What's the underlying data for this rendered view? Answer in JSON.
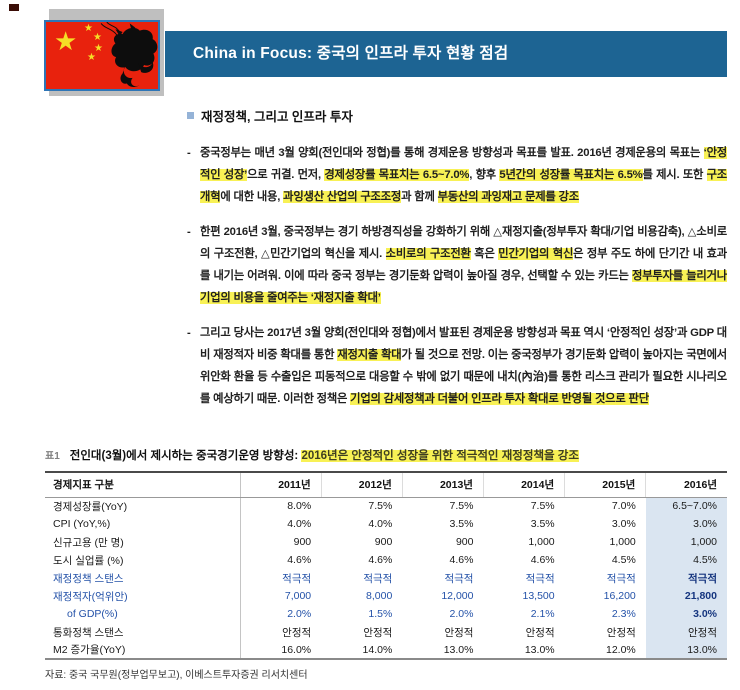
{
  "header": {
    "banner_title": "China in Focus: 중국의 인프라 투자 현황 점검",
    "banner_color": "#1d6493",
    "flag_icon": "china-flag-with-dragon"
  },
  "section": {
    "heading": "재정정책, 그리고 인프라 투자",
    "dash_marker": "-",
    "highlight_color": "#f8f155",
    "paragraphs": [
      {
        "segments": [
          {
            "text": "중국정부는 매년 3월 양회(전인대와 정협)를 통해 경제운용 방향성과 목표를 발표. 2016년 경제운용의 목표는 ",
            "hl": false
          },
          {
            "text": "‘안정적인 성장’",
            "hl": true
          },
          {
            "text": "으로 귀결. 먼저, ",
            "hl": false
          },
          {
            "text": "경제성장률 목표치는 6.5~7.0%",
            "hl": true
          },
          {
            "text": ", 향후 ",
            "hl": false
          },
          {
            "text": "5년간의 성장률 목표치는 6.5%",
            "hl": true
          },
          {
            "text": "를 제시. 또한 ",
            "hl": false
          },
          {
            "text": "구조개혁",
            "hl": true
          },
          {
            "text": "에 대한 내용, ",
            "hl": false
          },
          {
            "text": "과잉생산 산업의 구조조정",
            "hl": true
          },
          {
            "text": "과 함께 ",
            "hl": false
          },
          {
            "text": "부동산의 과잉재고 문제를 강조",
            "hl": true
          }
        ]
      },
      {
        "segments": [
          {
            "text": "한편 2016년 3월, 중국정부는 경기 하방경직성을 강화하기 위해 △재정지출(정부투자 확대/기업 비용감축), △소비로의 구조전환, △민간기업의 혁신을 제시. ",
            "hl": false
          },
          {
            "text": "소비로의 구조전환",
            "hl": true
          },
          {
            "text": " 혹은 ",
            "hl": false
          },
          {
            "text": "민간기업의 혁신",
            "hl": true
          },
          {
            "text": "은 정부 주도 하에 단기간 내 효과를 내기는 어려워. 이에 따라 중국 정부는 경기둔화 압력이 높아질 경우, 선택할 수 있는 카드는 ",
            "hl": false
          },
          {
            "text": "정부투자를 늘리거나 기업의 비용을 줄여주는 ‘재정지출 확대’",
            "hl": true
          }
        ]
      },
      {
        "segments": [
          {
            "text": "그리고 당사는 2017년 3월 양회(전인대와 정협)에서 발표된 경제운용 방향성과 목표 역시 ‘안정적인 성장’과 GDP 대비 재정적자 비중 확대를 통한 ",
            "hl": false
          },
          {
            "text": "재정지출 확대",
            "hl": true
          },
          {
            "text": "가 될 것으로 전망. 이는 중국정부가 경기둔화 압력이 높아지는 국면에서 위안화 환율 등 수출입은 피동적으로 대응할 수 밖에 없기 때문에 내치(內治)를 통한 리스크 관리가 필요한 시나리오를 예상하기 때문. 이러한 정책은 ",
            "hl": false
          },
          {
            "text": "기업의 감세정책과 더불어 인프라 투자 확대로 반영될 것으로 판단",
            "hl": true
          }
        ]
      }
    ]
  },
  "table": {
    "fig_label": "표1",
    "title_plain": "전인대(3월)에서 제시하는 중국경기운영 방향성: ",
    "title_highlight": "2016년은 안정적인 성장을 위한 적극적인 재정정책을 강조",
    "columns": [
      "경제지표 구분",
      "2011년",
      "2012년",
      "2013년",
      "2014년",
      "2015년",
      "2016년"
    ],
    "highlight_column": "2016년",
    "highlight_column_color": "#dae5f1",
    "blue_text_color": "#2452a8",
    "rows": [
      {
        "label": "경제성장률(YoY)",
        "values": [
          "8.0%",
          "7.5%",
          "7.5%",
          "7.5%",
          "7.0%",
          "6.5~7.0%"
        ],
        "style": "black",
        "indent": false
      },
      {
        "label": "CPI (YoY,%)",
        "values": [
          "4.0%",
          "4.0%",
          "3.5%",
          "3.5%",
          "3.0%",
          "3.0%"
        ],
        "style": "black",
        "indent": false
      },
      {
        "label": "신규고용 (만 명)",
        "values": [
          "900",
          "900",
          "900",
          "1,000",
          "1,000",
          "1,000"
        ],
        "style": "black",
        "indent": false
      },
      {
        "label": "도시 실업률 (%)",
        "values": [
          "4.6%",
          "4.6%",
          "4.6%",
          "4.6%",
          "4.5%",
          "4.5%"
        ],
        "style": "black",
        "indent": false
      },
      {
        "label": "재정정책 스탠스",
        "values": [
          "적극적",
          "적극적",
          "적극적",
          "적극적",
          "적극적",
          "적극적"
        ],
        "style": "blue",
        "indent": false
      },
      {
        "label": "재정적자(억위안)",
        "values": [
          "7,000",
          "8,000",
          "12,000",
          "13,500",
          "16,200",
          "21,800"
        ],
        "style": "blue",
        "indent": false
      },
      {
        "label": "of GDP(%)",
        "values": [
          "2.0%",
          "1.5%",
          "2.0%",
          "2.1%",
          "2.3%",
          "3.0%"
        ],
        "style": "blue",
        "indent": true
      },
      {
        "label": "통화정책 스탠스",
        "values": [
          "안정적",
          "안정적",
          "안정적",
          "안정적",
          "안정적",
          "안정적"
        ],
        "style": "black",
        "indent": false
      },
      {
        "label": "M2 증가율(YoY)",
        "values": [
          "16.0%",
          "14.0%",
          "13.0%",
          "13.0%",
          "12.0%",
          "13.0%"
        ],
        "style": "black",
        "indent": false
      }
    ],
    "source": "자료: 중국 국무원(정부업무보고), 이베스트투자증권 리서치센터"
  }
}
